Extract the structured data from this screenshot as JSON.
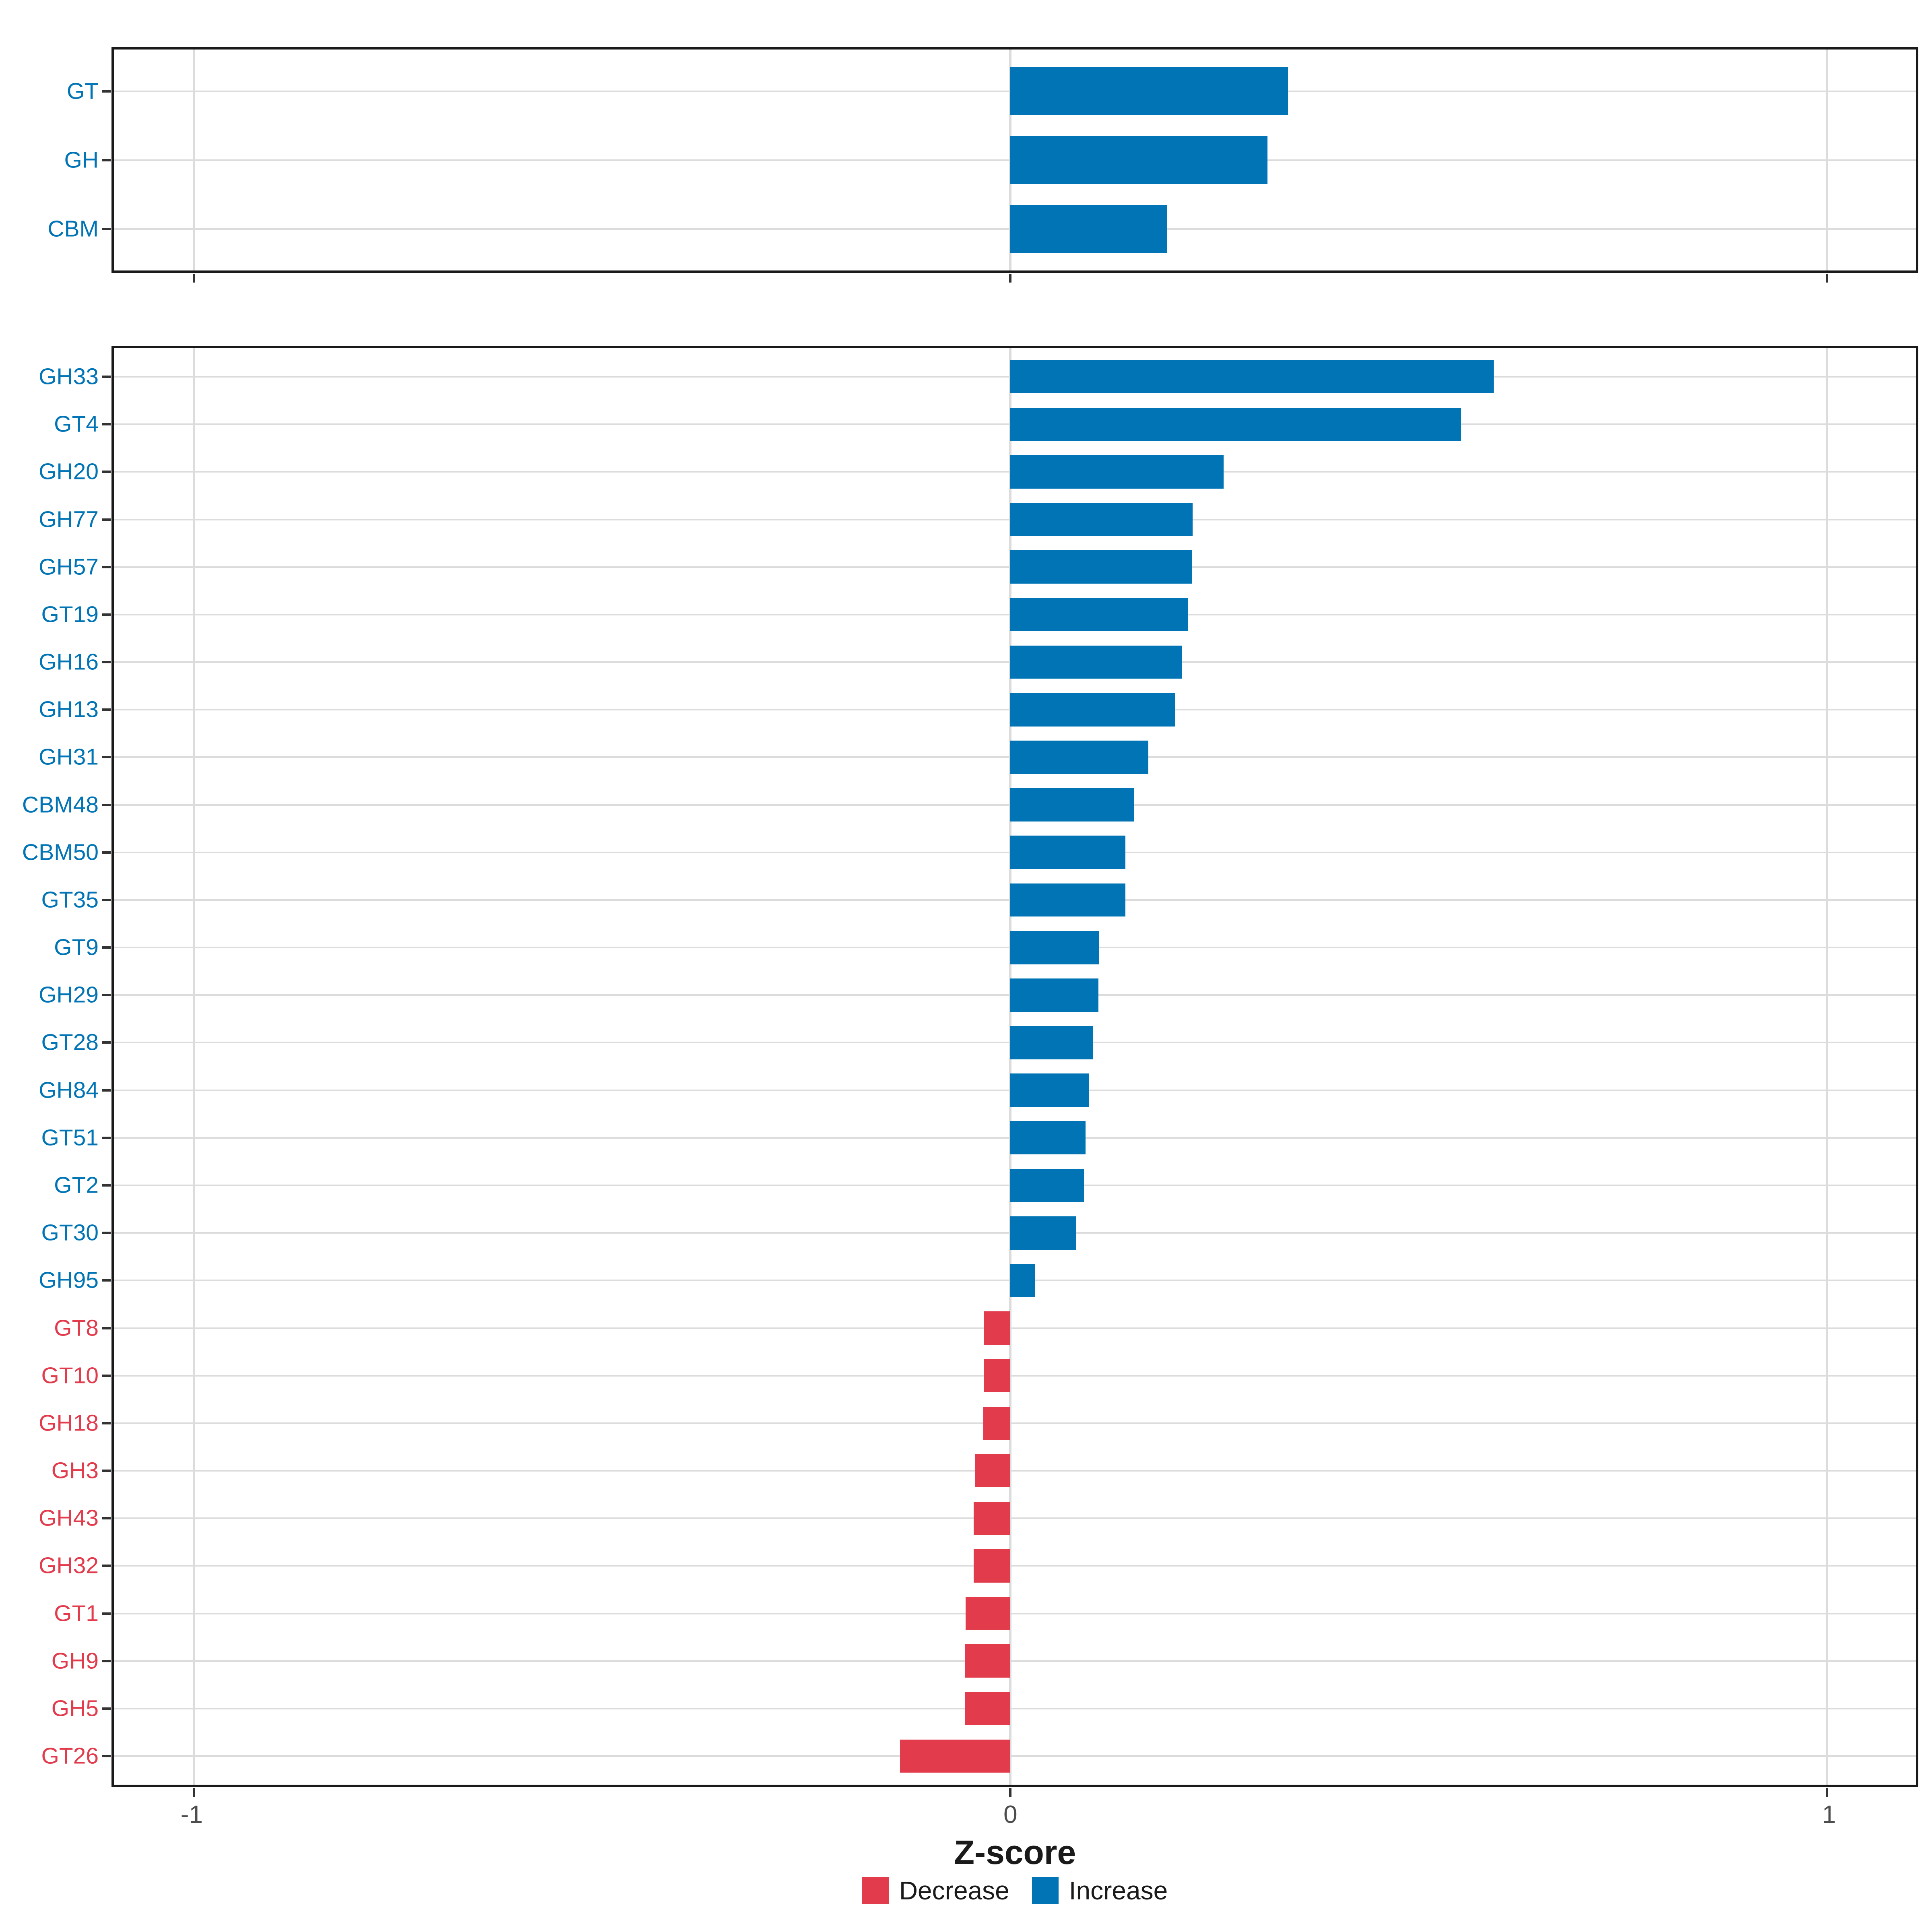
{
  "figure": {
    "background": "#FFFFFF"
  },
  "chart_data": {
    "type": "bar",
    "orientation": "horizontal",
    "title": "",
    "xlabel": "Z-score",
    "ylabel": "",
    "x_axis": {
      "ticks": [
        -1,
        0,
        1
      ],
      "tick_labels": [
        "-1",
        "0",
        "1"
      ],
      "xlim": [
        -1.098,
        1.109
      ],
      "grid": "major-vertical-and-horizontal"
    },
    "colors": {
      "increase": "#0074B4",
      "decrease": "#E23B4C",
      "tick_label": "#4D4D4D",
      "grid": "#DCDCDC",
      "panel_border": "#1A1A1A",
      "axis_title": "#1A1A1A",
      "legend_text": "#1A1A1A"
    },
    "legend": {
      "position": "bottom",
      "entries": [
        {
          "label": "Decrease",
          "direction": "decrease"
        },
        {
          "label": "Increase",
          "direction": "increase"
        }
      ]
    },
    "panels": [
      {
        "name": "enzyme-class-summary",
        "rows": [
          {
            "category": "GT",
            "value": 0.34,
            "direction": "increase"
          },
          {
            "category": "GH",
            "value": 0.315,
            "direction": "increase"
          },
          {
            "category": "CBM",
            "value": 0.192,
            "direction": "increase"
          }
        ]
      },
      {
        "name": "cazyme-families",
        "rows": [
          {
            "category": "GH33",
            "value": 0.592,
            "direction": "increase"
          },
          {
            "category": "GT4",
            "value": 0.552,
            "direction": "increase"
          },
          {
            "category": "GH20",
            "value": 0.261,
            "direction": "increase"
          },
          {
            "category": "GH77",
            "value": 0.223,
            "direction": "increase"
          },
          {
            "category": "GH57",
            "value": 0.222,
            "direction": "increase"
          },
          {
            "category": "GT19",
            "value": 0.217,
            "direction": "increase"
          },
          {
            "category": "GH16",
            "value": 0.21,
            "direction": "increase"
          },
          {
            "category": "GH13",
            "value": 0.202,
            "direction": "increase"
          },
          {
            "category": "GH31",
            "value": 0.169,
            "direction": "increase"
          },
          {
            "category": "CBM48",
            "value": 0.151,
            "direction": "increase"
          },
          {
            "category": "CBM50",
            "value": 0.141,
            "direction": "increase"
          },
          {
            "category": "GT35",
            "value": 0.141,
            "direction": "increase"
          },
          {
            "category": "GT9",
            "value": 0.109,
            "direction": "increase"
          },
          {
            "category": "GH29",
            "value": 0.108,
            "direction": "increase"
          },
          {
            "category": "GT28",
            "value": 0.101,
            "direction": "increase"
          },
          {
            "category": "GH84",
            "value": 0.096,
            "direction": "increase"
          },
          {
            "category": "GT51",
            "value": 0.092,
            "direction": "increase"
          },
          {
            "category": "GT2",
            "value": 0.09,
            "direction": "increase"
          },
          {
            "category": "GT30",
            "value": 0.08,
            "direction": "increase"
          },
          {
            "category": "GH95",
            "value": 0.03,
            "direction": "increase"
          },
          {
            "category": "GT8",
            "value": -0.032,
            "direction": "decrease"
          },
          {
            "category": "GT10",
            "value": -0.032,
            "direction": "decrease"
          },
          {
            "category": "GH18",
            "value": -0.033,
            "direction": "decrease"
          },
          {
            "category": "GH3",
            "value": -0.043,
            "direction": "decrease"
          },
          {
            "category": "GH43",
            "value": -0.045,
            "direction": "decrease"
          },
          {
            "category": "GH32",
            "value": -0.045,
            "direction": "decrease"
          },
          {
            "category": "GT1",
            "value": -0.055,
            "direction": "decrease"
          },
          {
            "category": "GH9",
            "value": -0.056,
            "direction": "decrease"
          },
          {
            "category": "GH5",
            "value": -0.056,
            "direction": "decrease"
          },
          {
            "category": "GT26",
            "value": -0.135,
            "direction": "decrease"
          }
        ]
      }
    ]
  }
}
